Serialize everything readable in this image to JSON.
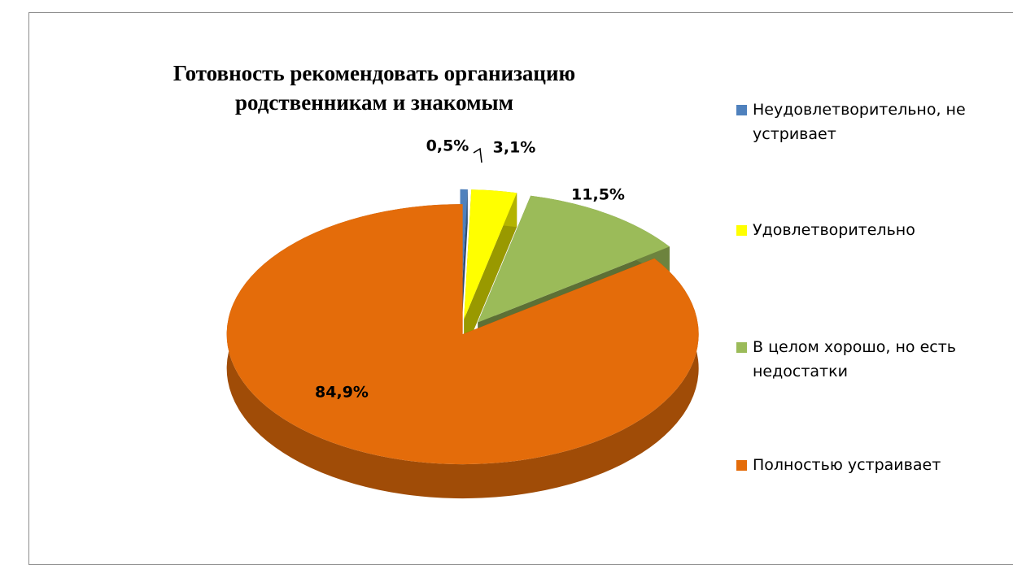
{
  "chart_data": {
    "type": "pie",
    "title": "Готовность рекомендовать организацию родственникам и знакомым",
    "categories": [
      "Неудовлетворительно, не устривает",
      "Удовлетворительно",
      "В целом хорошо, но есть недостатки",
      "Полностью устраивает"
    ],
    "values": [
      0.5,
      3.1,
      11.5,
      84.9
    ],
    "value_labels": [
      "0,5%",
      "3,1%",
      "11,5%",
      "84,9%"
    ],
    "colors": [
      "#4f81bd",
      "#ffff00",
      "#9bbb59",
      "#e46c0a"
    ],
    "legend": "right"
  }
}
